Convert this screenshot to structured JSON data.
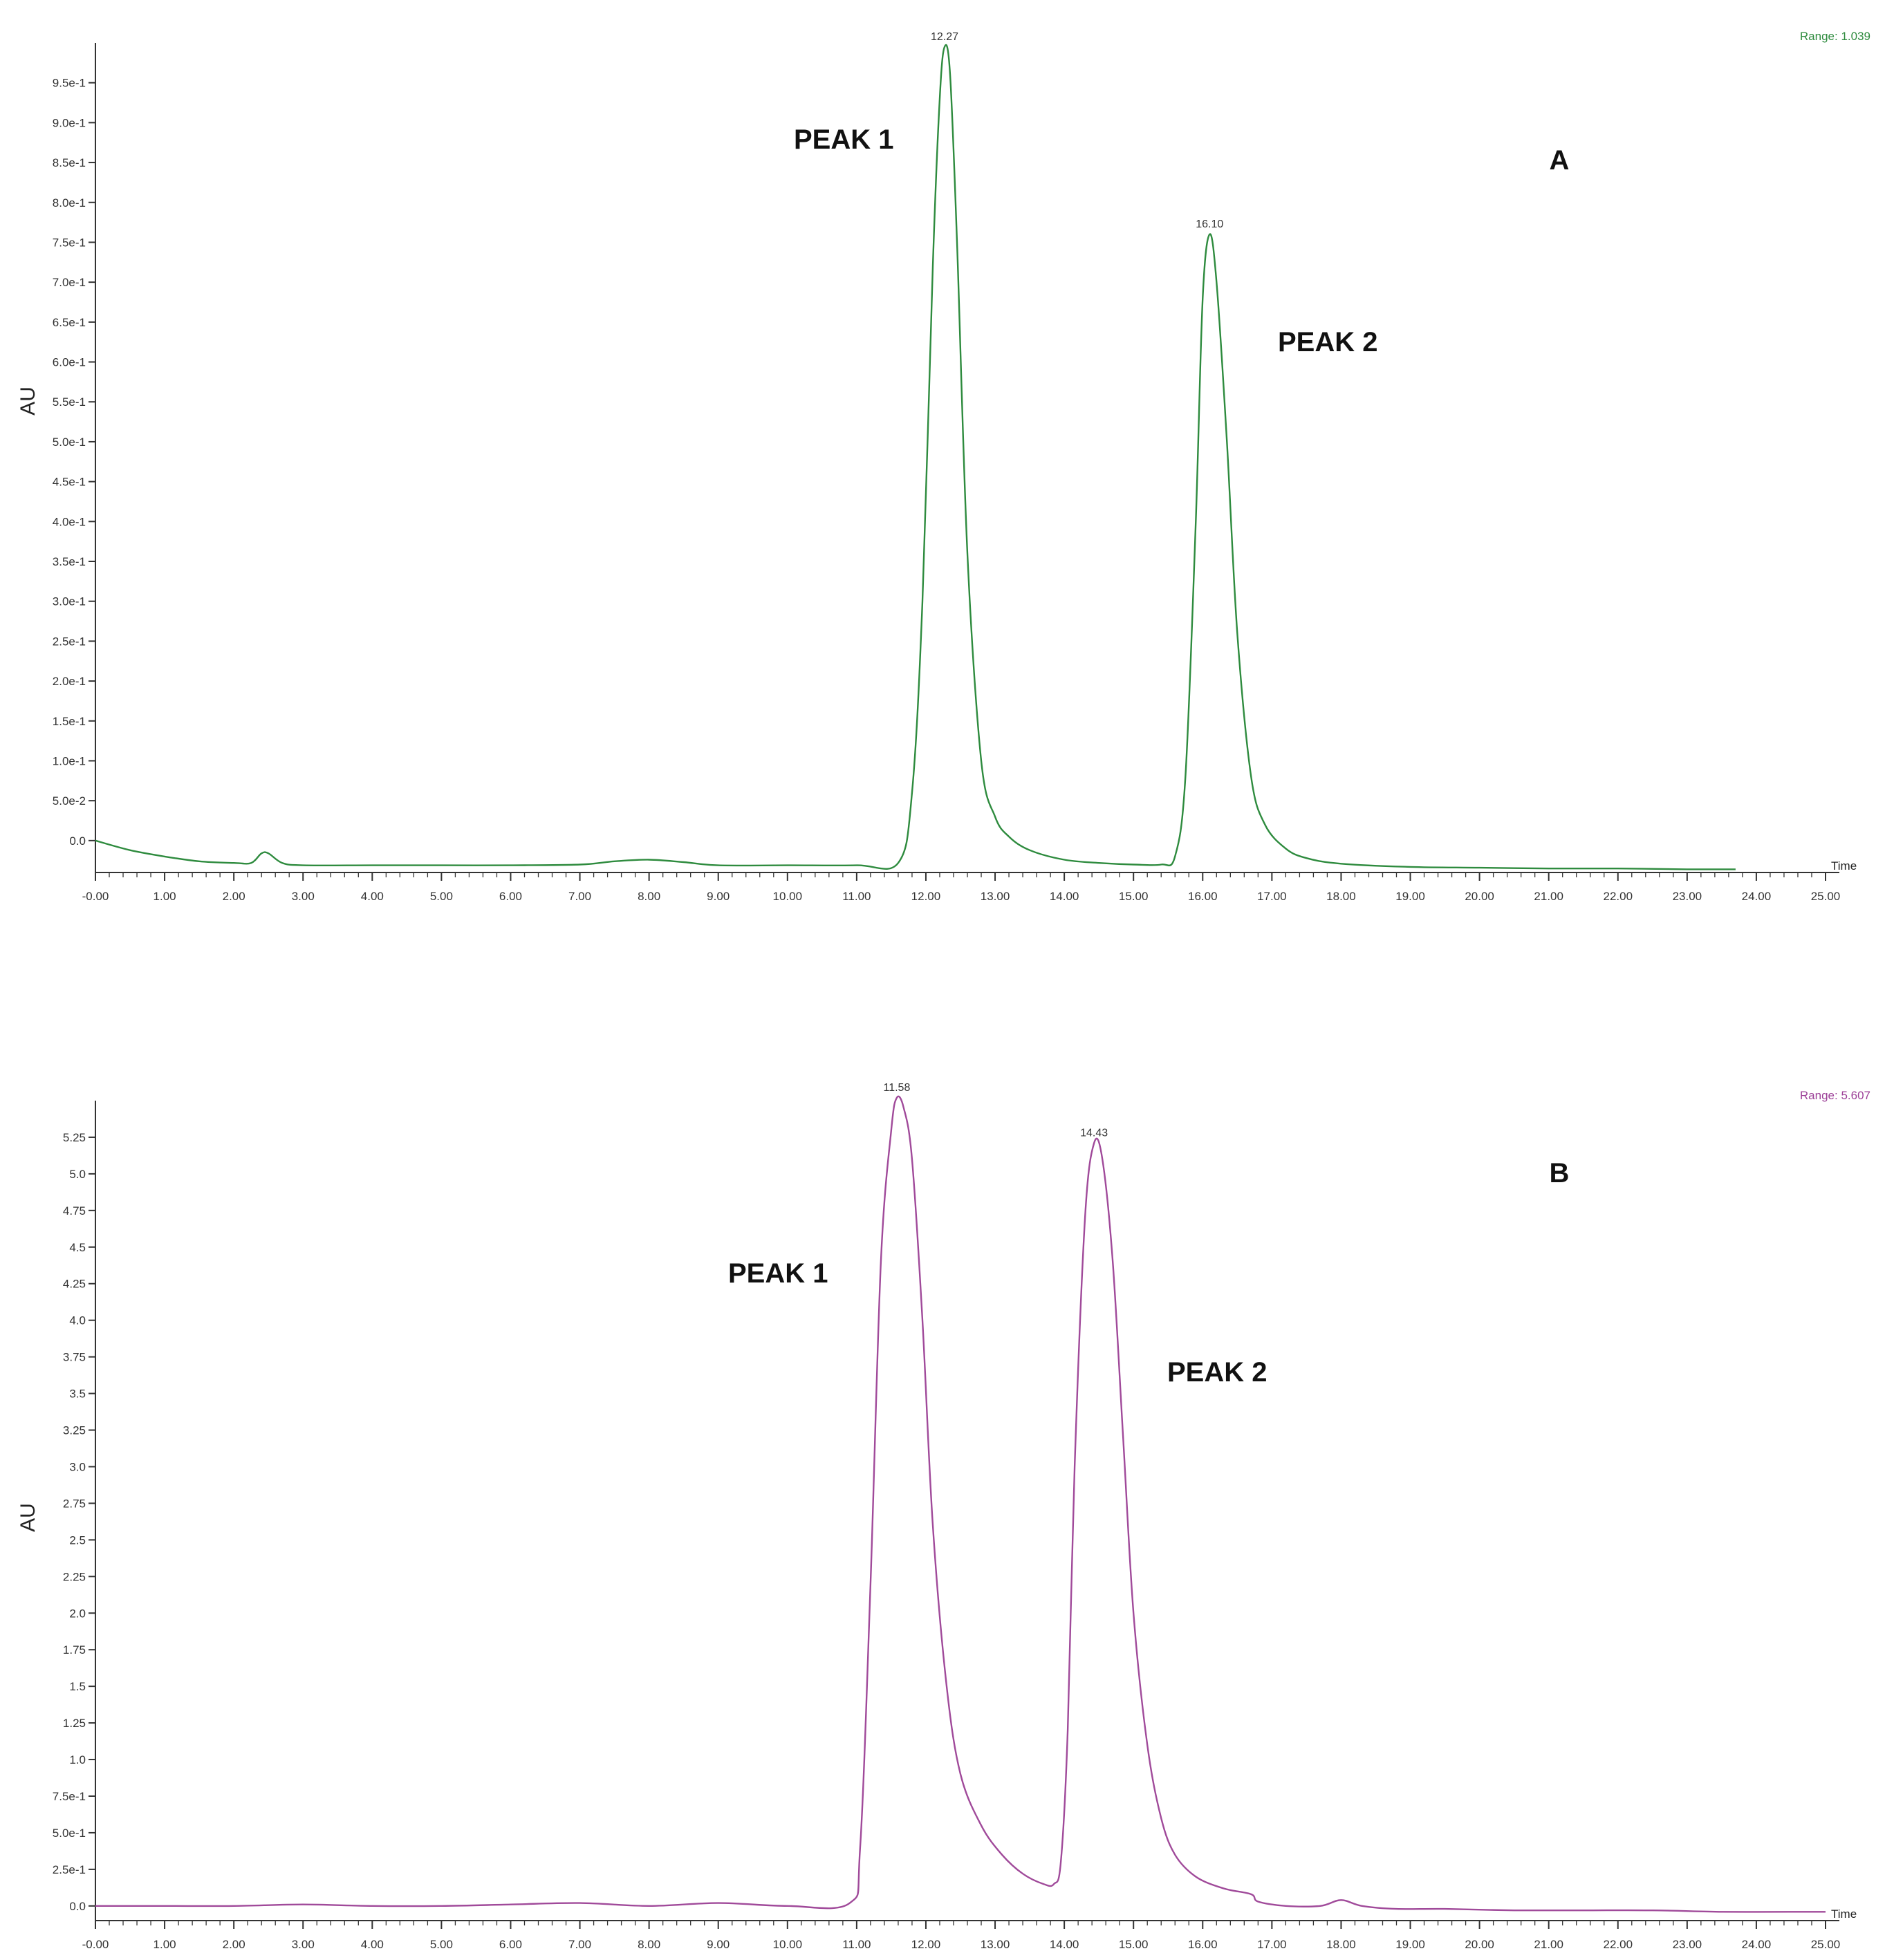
{
  "chart_data": [
    {
      "type": "line",
      "panel_label": "A",
      "range_label": "Range: 1.039",
      "ylabel": "AU",
      "xlabel": "Time",
      "xlim": [
        0,
        25
      ],
      "ylim": [
        -0.04,
        1.0
      ],
      "line_color": "#2e8b3e",
      "range_color": "#2e8b3e",
      "x_ticks": [
        {
          "value": 0,
          "label": "-0.00"
        },
        {
          "value": 1,
          "label": "1.00"
        },
        {
          "value": 2,
          "label": "2.00"
        },
        {
          "value": 3,
          "label": "3.00"
        },
        {
          "value": 4,
          "label": "4.00"
        },
        {
          "value": 5,
          "label": "5.00"
        },
        {
          "value": 6,
          "label": "6.00"
        },
        {
          "value": 7,
          "label": "7.00"
        },
        {
          "value": 8,
          "label": "8.00"
        },
        {
          "value": 9,
          "label": "9.00"
        },
        {
          "value": 10,
          "label": "10.00"
        },
        {
          "value": 11,
          "label": "11.00"
        },
        {
          "value": 12,
          "label": "12.00"
        },
        {
          "value": 13,
          "label": "13.00"
        },
        {
          "value": 14,
          "label": "14.00"
        },
        {
          "value": 15,
          "label": "15.00"
        },
        {
          "value": 16,
          "label": "16.00"
        },
        {
          "value": 17,
          "label": "17.00"
        },
        {
          "value": 18,
          "label": "18.00"
        },
        {
          "value": 19,
          "label": "19.00"
        },
        {
          "value": 20,
          "label": "20.00"
        },
        {
          "value": 21,
          "label": "21.00"
        },
        {
          "value": 22,
          "label": "22.00"
        },
        {
          "value": 23,
          "label": "23.00"
        },
        {
          "value": 24,
          "label": "24.00"
        },
        {
          "value": 25,
          "label": "25.00"
        }
      ],
      "y_ticks": [
        {
          "value": 0.0,
          "label": "0.0"
        },
        {
          "value": 0.05,
          "label": "5.0e-2"
        },
        {
          "value": 0.1,
          "label": "1.0e-1"
        },
        {
          "value": 0.15,
          "label": "1.5e-1"
        },
        {
          "value": 0.2,
          "label": "2.0e-1"
        },
        {
          "value": 0.25,
          "label": "2.5e-1"
        },
        {
          "value": 0.3,
          "label": "3.0e-1"
        },
        {
          "value": 0.35,
          "label": "3.5e-1"
        },
        {
          "value": 0.4,
          "label": "4.0e-1"
        },
        {
          "value": 0.45,
          "label": "4.5e-1"
        },
        {
          "value": 0.5,
          "label": "5.0e-1"
        },
        {
          "value": 0.55,
          "label": "5.5e-1"
        },
        {
          "value": 0.6,
          "label": "6.0e-1"
        },
        {
          "value": 0.65,
          "label": "6.5e-1"
        },
        {
          "value": 0.7,
          "label": "7.0e-1"
        },
        {
          "value": 0.75,
          "label": "7.5e-1"
        },
        {
          "value": 0.8,
          "label": "8.0e-1"
        },
        {
          "value": 0.85,
          "label": "8.5e-1"
        },
        {
          "value": 0.9,
          "label": "9.0e-1"
        },
        {
          "value": 0.95,
          "label": "9.5e-1"
        }
      ],
      "peaks": [
        {
          "name": "PEAK 1",
          "time": 12.27,
          "time_label": "12.27",
          "height": 0.995
        },
        {
          "name": "PEAK 2",
          "time": 16.1,
          "time_label": "16.10",
          "height": 0.76
        }
      ],
      "series": [
        {
          "x": [
            0,
            0.5,
            1,
            1.5,
            2,
            2.25,
            2.4,
            2.5,
            2.7,
            3,
            4,
            5,
            6,
            7,
            7.5,
            8,
            8.5,
            9,
            10,
            11,
            11.6,
            11.8,
            11.95,
            12.1,
            12.2,
            12.27,
            12.35,
            12.45,
            12.6,
            12.8,
            13,
            13.2,
            13.5,
            14,
            14.5,
            15,
            15.4,
            15.6,
            15.75,
            15.9,
            16.0,
            16.1,
            16.2,
            16.35,
            16.5,
            16.7,
            16.9,
            17.2,
            17.5,
            18,
            19,
            20,
            21,
            22,
            23,
            23.7
          ],
          "y": [
            0.0,
            -0.012,
            -0.02,
            -0.026,
            -0.028,
            -0.028,
            -0.016,
            -0.016,
            -0.028,
            -0.031,
            -0.031,
            -0.031,
            -0.031,
            -0.03,
            -0.026,
            -0.024,
            -0.027,
            -0.031,
            -0.031,
            -0.031,
            -0.028,
            0.06,
            0.3,
            0.72,
            0.93,
            0.995,
            0.96,
            0.75,
            0.36,
            0.1,
            0.03,
            0.005,
            -0.012,
            -0.024,
            -0.028,
            -0.03,
            -0.03,
            -0.02,
            0.08,
            0.4,
            0.68,
            0.76,
            0.7,
            0.5,
            0.26,
            0.08,
            0.02,
            -0.01,
            -0.022,
            -0.029,
            -0.033,
            -0.034,
            -0.035,
            -0.035,
            -0.036,
            -0.036
          ]
        }
      ]
    },
    {
      "type": "line",
      "panel_label": "B",
      "range_label": "Range: 5.607",
      "ylabel": "AU",
      "xlabel": "Time",
      "xlim": [
        0,
        25
      ],
      "ylim": [
        -0.1,
        5.5
      ],
      "line_color": "#a04a9a",
      "range_color": "#9c3f97",
      "x_ticks": [
        {
          "value": 0,
          "label": "-0.00"
        },
        {
          "value": 1,
          "label": "1.00"
        },
        {
          "value": 2,
          "label": "2.00"
        },
        {
          "value": 3,
          "label": "3.00"
        },
        {
          "value": 4,
          "label": "4.00"
        },
        {
          "value": 5,
          "label": "5.00"
        },
        {
          "value": 6,
          "label": "6.00"
        },
        {
          "value": 7,
          "label": "7.00"
        },
        {
          "value": 8,
          "label": "8.00"
        },
        {
          "value": 9,
          "label": "9.00"
        },
        {
          "value": 10,
          "label": "10.00"
        },
        {
          "value": 11,
          "label": "11.00"
        },
        {
          "value": 12,
          "label": "12.00"
        },
        {
          "value": 13,
          "label": "13.00"
        },
        {
          "value": 14,
          "label": "14.00"
        },
        {
          "value": 15,
          "label": "15.00"
        },
        {
          "value": 16,
          "label": "16.00"
        },
        {
          "value": 17,
          "label": "17.00"
        },
        {
          "value": 18,
          "label": "18.00"
        },
        {
          "value": 19,
          "label": "19.00"
        },
        {
          "value": 20,
          "label": "20.00"
        },
        {
          "value": 21,
          "label": "21.00"
        },
        {
          "value": 22,
          "label": "22.00"
        },
        {
          "value": 23,
          "label": "23.00"
        },
        {
          "value": 24,
          "label": "24.00"
        },
        {
          "value": 25,
          "label": "25.00"
        }
      ],
      "y_ticks": [
        {
          "value": 0.0,
          "label": "0.0"
        },
        {
          "value": 0.25,
          "label": "2.5e-1"
        },
        {
          "value": 0.5,
          "label": "5.0e-1"
        },
        {
          "value": 0.75,
          "label": "7.5e-1"
        },
        {
          "value": 1.0,
          "label": "1.0"
        },
        {
          "value": 1.25,
          "label": "1.25"
        },
        {
          "value": 1.5,
          "label": "1.5"
        },
        {
          "value": 1.75,
          "label": "1.75"
        },
        {
          "value": 2.0,
          "label": "2.0"
        },
        {
          "value": 2.25,
          "label": "2.25"
        },
        {
          "value": 2.5,
          "label": "2.5"
        },
        {
          "value": 2.75,
          "label": "2.75"
        },
        {
          "value": 3.0,
          "label": "3.0"
        },
        {
          "value": 3.25,
          "label": "3.25"
        },
        {
          "value": 3.5,
          "label": "3.5"
        },
        {
          "value": 3.75,
          "label": "3.75"
        },
        {
          "value": 4.0,
          "label": "4.0"
        },
        {
          "value": 4.25,
          "label": "4.25"
        },
        {
          "value": 4.5,
          "label": "4.5"
        },
        {
          "value": 4.75,
          "label": "4.75"
        },
        {
          "value": 5.0,
          "label": "5.0"
        },
        {
          "value": 5.25,
          "label": "5.25"
        }
      ],
      "peaks": [
        {
          "name": "PEAK 1",
          "time": 11.58,
          "time_label": "11.58",
          "height": 5.52
        },
        {
          "name": "PEAK 2",
          "time": 14.43,
          "time_label": "14.43",
          "height": 5.21
        }
      ],
      "series": [
        {
          "x": [
            0,
            1,
            2,
            3,
            4,
            5,
            6,
            7,
            8,
            9,
            10,
            10.9,
            11.05,
            11.2,
            11.35,
            11.5,
            11.58,
            11.68,
            11.8,
            11.95,
            12.1,
            12.3,
            12.5,
            12.8,
            13.1,
            13.4,
            13.7,
            13.85,
            13.95,
            14.05,
            14.15,
            14.3,
            14.43,
            14.55,
            14.7,
            14.85,
            15.0,
            15.2,
            15.4,
            15.6,
            15.9,
            16.3,
            16.7,
            16.8,
            17.2,
            17.7,
            18.0,
            18.3,
            18.8,
            19.5,
            20.5,
            21.5,
            22.5,
            23.5,
            24.5,
            25
          ],
          "y": [
            0.0,
            0.0,
            0.0,
            0.01,
            0.0,
            0.0,
            0.01,
            0.02,
            0.0,
            0.02,
            0.0,
            0.02,
            0.4,
            2.2,
            4.4,
            5.3,
            5.52,
            5.45,
            5.1,
            4.0,
            2.6,
            1.5,
            0.9,
            0.55,
            0.35,
            0.22,
            0.15,
            0.15,
            0.3,
            1.2,
            3.0,
            4.7,
            5.21,
            5.1,
            4.4,
            3.2,
            2.0,
            1.1,
            0.6,
            0.35,
            0.2,
            0.12,
            0.08,
            0.03,
            0.0,
            0.0,
            0.04,
            0.0,
            -0.02,
            -0.02,
            -0.03,
            -0.03,
            -0.03,
            -0.04,
            -0.04,
            -0.04
          ]
        }
      ]
    }
  ]
}
